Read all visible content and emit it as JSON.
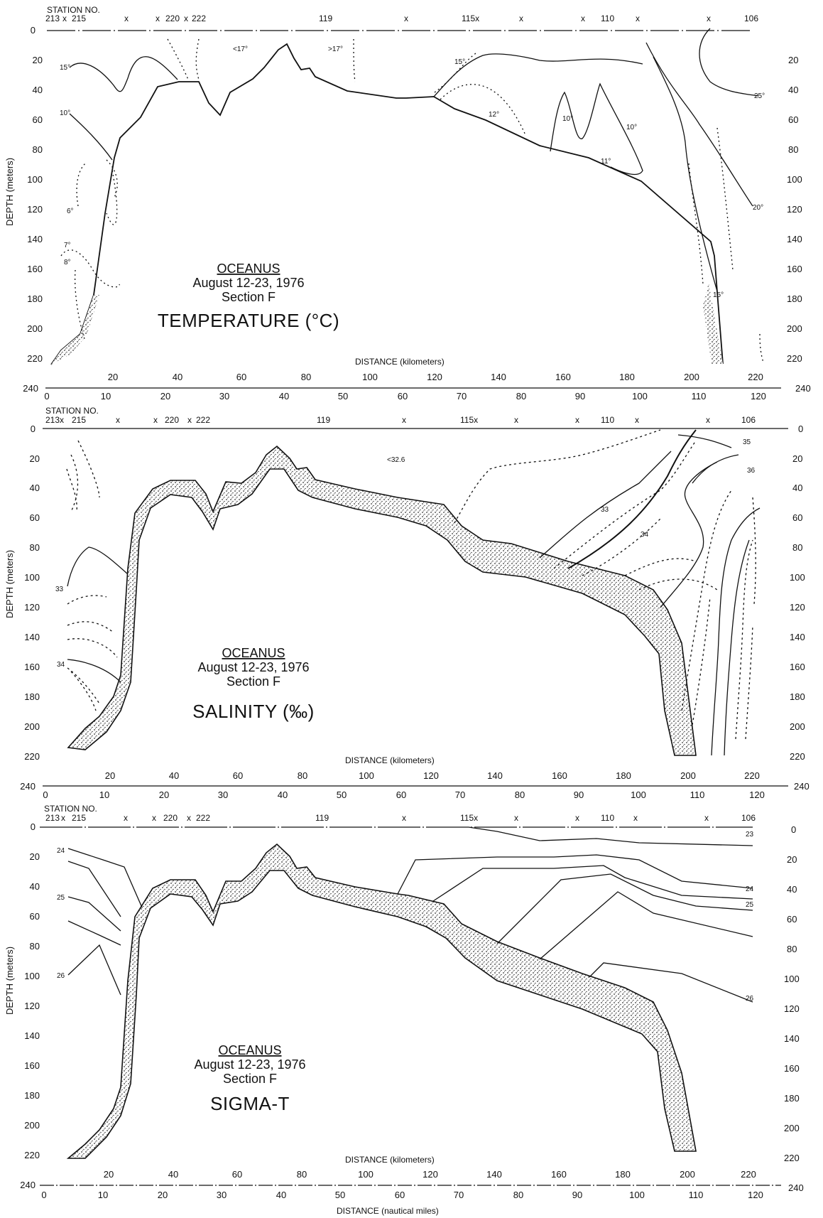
{
  "common": {
    "station_label_1": "STATION NO.",
    "station_label_2": "STATION NO.",
    "station_label_3": "STATION NO.",
    "stations": [
      "213",
      "x",
      "215",
      "x",
      "x",
      "220",
      "x",
      "222",
      "119",
      "x",
      "115x",
      "x",
      "x",
      "110",
      "x",
      "x",
      "106"
    ],
    "depth_label": "DEPTH (meters)",
    "depth_ticks": [
      "0",
      "20",
      "40",
      "60",
      "80",
      "100",
      "120",
      "140",
      "160",
      "180",
      "200",
      "220",
      "240"
    ],
    "km_label": "DISTANCE (kilometers)",
    "km_ticks": [
      "20",
      "40",
      "60",
      "80",
      "100",
      "120",
      "140",
      "160",
      "180",
      "200",
      "220"
    ],
    "nm_ticks": [
      "0",
      "10",
      "20",
      "30",
      "40",
      "50",
      "60",
      "70",
      "80",
      "90",
      "100",
      "110",
      "120"
    ],
    "nm_label": "DISTANCE (nautical miles)",
    "cruise": "OCEANUS",
    "dates": "August 12-23, 1976",
    "section": "Section F"
  },
  "panels": [
    {
      "title": "TEMPERATURE (°C)",
      "isotherm_labels": [
        "15°",
        "10°",
        "6°",
        "7°",
        "8°",
        "<17°",
        ">17°",
        "15°",
        "12°",
        "10°",
        "10°",
        "11°",
        "25°",
        "20°",
        "15°"
      ]
    },
    {
      "title": "SALINITY (‰)",
      "isohaline_labels": [
        "<32.6",
        "33",
        "34",
        "35",
        "36",
        "33",
        "34"
      ]
    },
    {
      "title": "SIGMA-T",
      "isopycnal_labels": [
        "24",
        "25",
        "26",
        "23",
        "24",
        "25",
        "26"
      ]
    }
  ],
  "chart_data": [
    {
      "type": "contour section",
      "title": "TEMPERATURE (°C)",
      "xlabel": "DISTANCE (kilometers)",
      "ylabel": "DEPTH (meters)",
      "ylim": [
        0,
        240
      ],
      "xlim_nautical_miles": [
        0,
        120
      ],
      "bottom_profile_depth_m": [
        [
          3,
          213
        ],
        [
          6,
          203
        ],
        [
          9,
          192
        ],
        [
          12,
          163
        ],
        [
          14,
          90
        ],
        [
          16,
          57
        ],
        [
          19,
          45
        ],
        [
          22,
          37
        ],
        [
          27,
          37
        ],
        [
          30,
          57
        ],
        [
          33,
          34
        ],
        [
          36,
          34
        ],
        [
          40,
          12
        ],
        [
          43,
          28
        ],
        [
          45,
          27
        ],
        [
          47,
          33
        ],
        [
          63,
          45
        ],
        [
          66,
          45
        ],
        [
          70,
          55
        ],
        [
          85,
          80
        ],
        [
          100,
          100
        ],
        [
          107,
          140
        ],
        [
          110,
          213
        ]
      ],
      "contours": [
        "15°",
        "10°",
        "6°",
        "7°",
        "8°",
        "<17°",
        ">17°",
        "15°",
        "12°",
        "10°",
        "10°",
        "11°",
        "25°",
        "20°",
        "15°"
      ]
    },
    {
      "type": "contour section",
      "title": "SALINITY (‰)",
      "xlabel": "DISTANCE (kilometers)",
      "ylabel": "DEPTH (meters)",
      "ylim": [
        0,
        240
      ],
      "contours": [
        "<32.6",
        "33",
        "34",
        "35",
        "36"
      ]
    },
    {
      "type": "contour section",
      "title": "SIGMA-T",
      "xlabel": "DISTANCE (kilometers)",
      "ylabel": "DEPTH (meters)",
      "ylim": [
        0,
        240
      ],
      "contours": [
        "23",
        "24",
        "25",
        "26"
      ]
    }
  ]
}
